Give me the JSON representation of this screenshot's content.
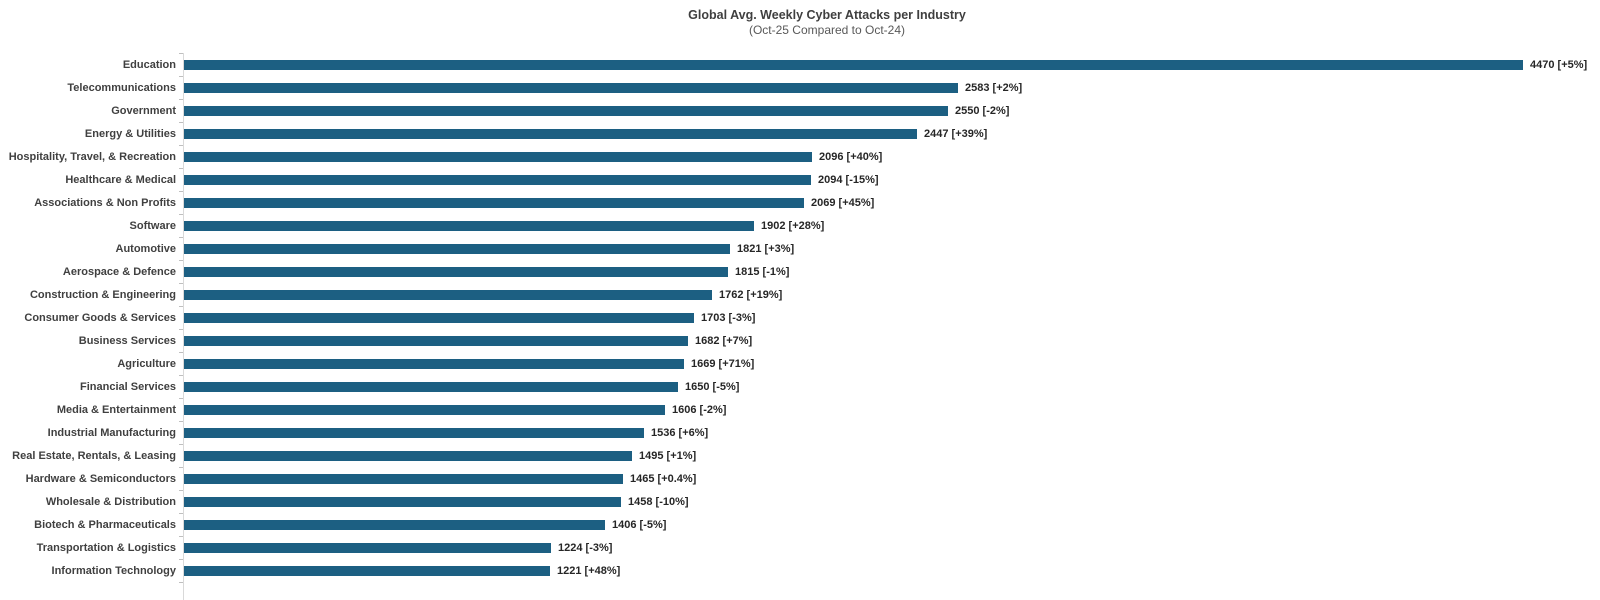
{
  "header": {
    "title": "Global Avg. Weekly Cyber Attacks per Industry",
    "subtitle": "(Oct-25 Compared to Oct-24)"
  },
  "colors": {
    "bar": "#1c5f82",
    "axis_line": "#d9d9d9",
    "tick": "#bfbfbf",
    "title_text": "#3f3f3f",
    "subtitle_text": "#595959",
    "category_text": "#404040",
    "value_text": "#262626"
  },
  "chart_data": {
    "type": "bar",
    "orientation": "horizontal",
    "title": "Global Avg. Weekly Cyber Attacks per Industry",
    "subtitle": "(Oct-25 Compared to Oct-24)",
    "xlabel": "",
    "ylabel": "",
    "xlim": [
      0,
      4700
    ],
    "grid": false,
    "legend": false,
    "categories": [
      "Education",
      "Telecommunications",
      "Government",
      "Energy & Utilities",
      "Hospitality, Travel, & Recreation",
      "Healthcare & Medical",
      "Associations & Non Profits",
      "Software",
      "Automotive",
      "Aerospace & Defence",
      "Construction & Engineering",
      "Consumer Goods & Services",
      "Business Services",
      "Agriculture",
      "Financial Services",
      "Media & Entertainment",
      "Industrial Manufacturing",
      "Real Estate, Rentals, & Leasing",
      "Hardware & Semiconductors",
      "Wholesale & Distribution",
      "Biotech & Pharmaceuticals",
      "Transportation & Logistics",
      "Information Technology"
    ],
    "values": [
      4470,
      2583,
      2550,
      2447,
      2096,
      2094,
      2069,
      1902,
      1821,
      1815,
      1762,
      1703,
      1682,
      1669,
      1650,
      1606,
      1536,
      1495,
      1465,
      1458,
      1406,
      1224,
      1221
    ],
    "pct_change": [
      "+5%",
      "+2%",
      "-2%",
      "+39%",
      "+40%",
      "-15%",
      "+45%",
      "+28%",
      "+3%",
      "-1%",
      "+19%",
      "-3%",
      "+7%",
      "+71%",
      "-5%",
      "-2%",
      "+6%",
      "+1%",
      "+0.4%",
      "-10%",
      "-5%",
      "-3%",
      "+48%"
    ],
    "data_labels": [
      "4470 [+5%]",
      "2583 [+2%]",
      "2550 [-2%]",
      "2447 [+39%]",
      "2096 [+40%]",
      "2094 [-15%]",
      "2069 [+45%]",
      "1902 [+28%]",
      "1821 [+3%]",
      "1815 [-1%]",
      "1762 [+19%]",
      "1703 [-3%]",
      "1682 [+7%]",
      "1669 [+71%]",
      "1650 [-5%]",
      "1606 [-2%]",
      "1536 [+6%]",
      "1495 [+1%]",
      "1465 [+0.4%]",
      "1458 [-10%]",
      "1406 [-5%]",
      "1224 [-3%]",
      "1221 [+48%]"
    ]
  }
}
